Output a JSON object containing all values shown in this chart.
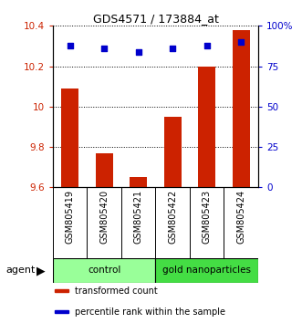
{
  "title": "GDS4571 / 173884_at",
  "samples": [
    "GSM805419",
    "GSM805420",
    "GSM805421",
    "GSM805422",
    "GSM805423",
    "GSM805424"
  ],
  "bar_values": [
    10.09,
    9.77,
    9.65,
    9.95,
    10.2,
    10.38
  ],
  "percentile_values": [
    88,
    86,
    84,
    86,
    88,
    90
  ],
  "bar_color": "#cc2200",
  "dot_color": "#0000cc",
  "ylim_left": [
    9.6,
    10.4
  ],
  "ylim_right": [
    0,
    100
  ],
  "yticks_left": [
    9.6,
    9.8,
    10.0,
    10.2,
    10.4
  ],
  "ytick_labels_left": [
    "9.6",
    "9.8",
    "10",
    "10.2",
    "10.4"
  ],
  "yticks_right": [
    0,
    25,
    50,
    75,
    100
  ],
  "ytick_labels_right": [
    "0",
    "25",
    "50",
    "75",
    "100%"
  ],
  "groups": [
    {
      "label": "control",
      "n_samples": 3,
      "color": "#99ff99"
    },
    {
      "label": "gold nanoparticles",
      "n_samples": 3,
      "color": "#44dd44"
    }
  ],
  "agent_label": "agent",
  "legend_items": [
    {
      "label": "transformed count",
      "color": "#cc2200"
    },
    {
      "label": "percentile rank within the sample",
      "color": "#0000cc"
    }
  ],
  "bg_color": "#d8d8d8"
}
